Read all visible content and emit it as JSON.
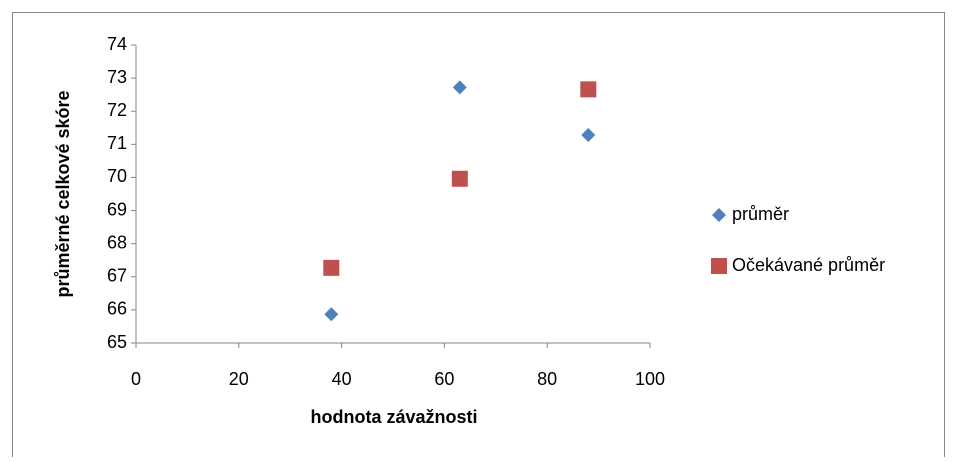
{
  "chart_data": {
    "type": "scatter",
    "x_label": "hodnota závažnosti",
    "y_label": "průměrné celkové skóre",
    "series": [
      {
        "name": "průměr",
        "color": "#4f81bd",
        "marker": "diamond",
        "x": [
          38,
          63,
          88
        ],
        "values": [
          65.87,
          72.72,
          71.28
        ]
      },
      {
        "name": "Očekávané průměr",
        "color": "#c0504d",
        "marker": "square",
        "x": [
          38,
          63,
          88
        ],
        "values": [
          67.27,
          69.96,
          72.66
        ]
      }
    ],
    "xlim": [
      0,
      100
    ],
    "xticks": [
      0,
      20,
      40,
      60,
      80,
      100
    ],
    "ylim": [
      65,
      74
    ],
    "yticks": [
      65,
      66,
      67,
      68,
      69,
      70,
      71,
      72,
      73,
      74
    ],
    "grid": false,
    "legend": "right"
  }
}
